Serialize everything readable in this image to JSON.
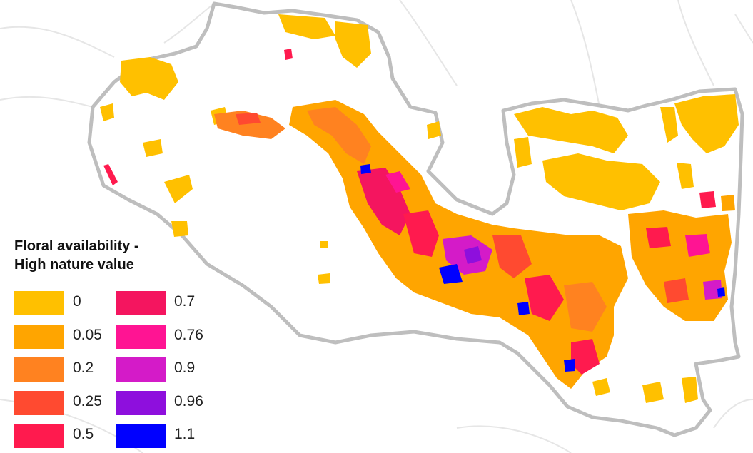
{
  "legend": {
    "title_line1": "Floral availability -",
    "title_line2": "High nature value",
    "items": [
      {
        "label": "0",
        "color": "#FFC000"
      },
      {
        "label": "0.05",
        "color": "#FFA500"
      },
      {
        "label": "0.2",
        "color": "#FF8220"
      },
      {
        "label": "0.25",
        "color": "#FF4A30"
      },
      {
        "label": "0.5",
        "color": "#FF1A4E"
      },
      {
        "label": "0.7",
        "color": "#F4155F"
      },
      {
        "label": "0.76",
        "color": "#FF1493"
      },
      {
        "label": "0.9",
        "color": "#D41BC8"
      },
      {
        "label": "0.96",
        "color": "#8E0FDD"
      },
      {
        "label": "1.1",
        "color": "#0000FF"
      }
    ]
  },
  "map": {
    "boundary_stroke": "#BEBEBE",
    "background_line": "#E6E6E6"
  }
}
